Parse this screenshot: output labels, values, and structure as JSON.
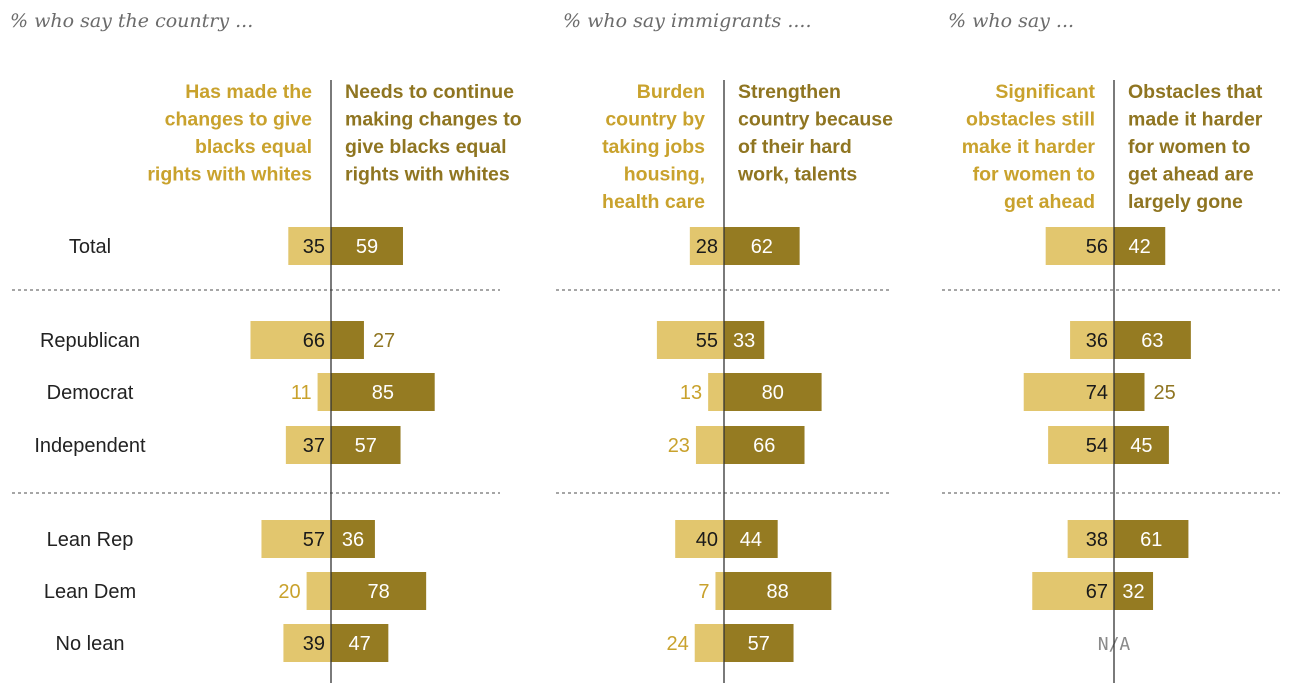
{
  "colors": {
    "left": "#e2c66e",
    "right": "#957b22",
    "left_text": "#c9a22d",
    "right_text": "#8f7521",
    "axis": "#333333",
    "divider": "#888888"
  },
  "row_labels": [
    "Total",
    "Republican",
    "Democrat",
    "Independent",
    "Lean Rep",
    "Lean Dem",
    "No lean"
  ],
  "chart_data": [
    {
      "type": "bar",
      "subtitle": "% who say the country ...",
      "left_label": [
        "Has made the",
        "changes to give",
        "blacks equal",
        "rights with whites"
      ],
      "right_label": [
        "Needs to continue",
        "making changes to",
        "give blacks equal",
        "rights with whites"
      ],
      "categories": [
        "Total",
        "Republican",
        "Democrat",
        "Independent",
        "Lean Rep",
        "Lean Dem",
        "No lean"
      ],
      "series": [
        {
          "name": "Has made the changes to give blacks equal rights with whites",
          "values": [
            35,
            66,
            11,
            37,
            57,
            20,
            39
          ]
        },
        {
          "name": "Needs to continue making changes to give blacks equal rights with whites",
          "values": [
            59,
            27,
            85,
            57,
            36,
            78,
            47
          ]
        }
      ]
    },
    {
      "type": "bar",
      "subtitle": "% who say immigrants ....",
      "left_label": [
        "Burden",
        "country by",
        "taking jobs",
        "housing,",
        "health care"
      ],
      "right_label": [
        "Strengthen",
        "country because",
        "of their hard",
        "work, talents"
      ],
      "categories": [
        "Total",
        "Republican",
        "Democrat",
        "Independent",
        "Lean Rep",
        "Lean Dem",
        "No lean"
      ],
      "series": [
        {
          "name": "Burden country by taking jobs housing, health care",
          "values": [
            28,
            55,
            13,
            23,
            40,
            7,
            24
          ]
        },
        {
          "name": "Strengthen country because of their hard work, talents",
          "values": [
            62,
            33,
            80,
            66,
            44,
            88,
            57
          ]
        }
      ]
    },
    {
      "type": "bar",
      "subtitle": "% who say ...",
      "left_label": [
        "Significant",
        "obstacles still",
        "make it harder",
        "for women to",
        "get ahead"
      ],
      "right_label": [
        "Obstacles that",
        "made it harder",
        "for women to",
        "get ahead are",
        "largely gone"
      ],
      "categories": [
        "Total",
        "Republican",
        "Democrat",
        "Independent",
        "Lean Rep",
        "Lean Dem",
        "No lean"
      ],
      "na_text": "N/A",
      "series": [
        {
          "name": "Significant obstacles still make it harder for women to get ahead",
          "values": [
            56,
            36,
            74,
            54,
            38,
            67,
            null
          ]
        },
        {
          "name": "Obstacles that made it harder for women to get ahead are largely gone",
          "values": [
            42,
            63,
            25,
            45,
            61,
            32,
            null
          ]
        }
      ]
    }
  ]
}
